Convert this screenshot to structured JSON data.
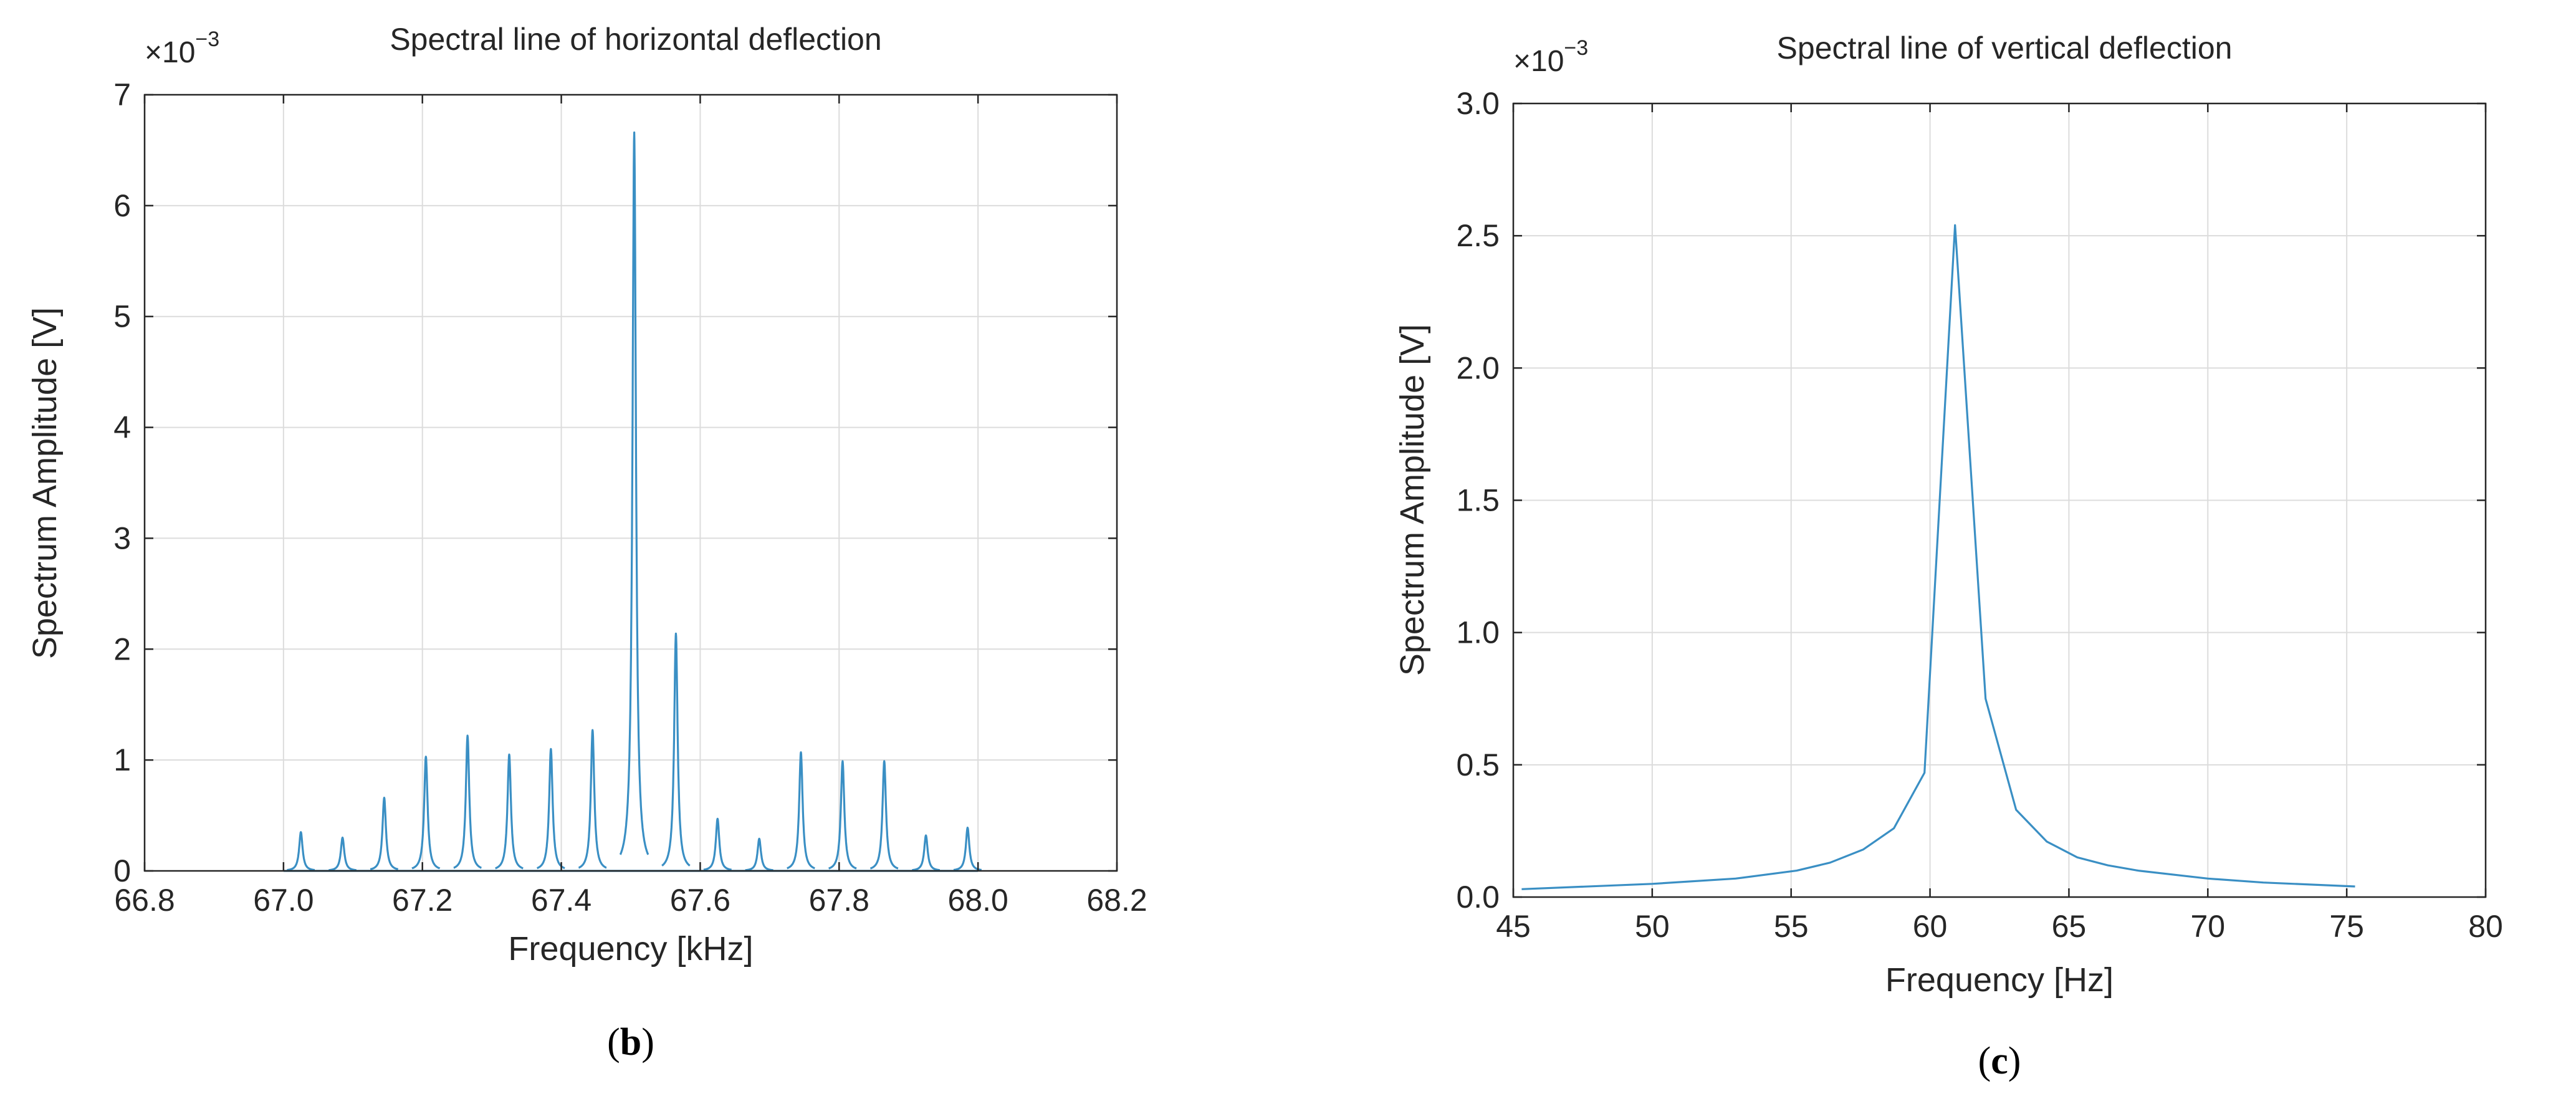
{
  "chart_data": [
    {
      "type": "line",
      "panel_label": "b",
      "title": "Spectral line of horizontal deflection",
      "xlabel": "Frequency [kHz]",
      "ylabel": "Spectrum Amplitude [V]",
      "y_scale_label": "×10",
      "y_scale_exponent": "−3",
      "xlim": [
        66.8,
        68.2
      ],
      "ylim": [
        0,
        7
      ],
      "xticks": [
        "66.8",
        "67.0",
        "67.2",
        "67.4",
        "67.6",
        "67.8",
        "68.0",
        "68.2"
      ],
      "yticks": [
        "0",
        "1",
        "2",
        "3",
        "4",
        "5",
        "6",
        "7"
      ],
      "grid": true,
      "peak_width_khz": 0.003,
      "peaks": [
        {
          "x": 67.025,
          "y": 0.35
        },
        {
          "x": 67.085,
          "y": 0.3
        },
        {
          "x": 67.145,
          "y": 0.66
        },
        {
          "x": 67.205,
          "y": 1.03
        },
        {
          "x": 67.265,
          "y": 1.22
        },
        {
          "x": 67.325,
          "y": 1.05
        },
        {
          "x": 67.385,
          "y": 1.1
        },
        {
          "x": 67.445,
          "y": 1.27
        },
        {
          "x": 67.505,
          "y": 6.66
        },
        {
          "x": 67.565,
          "y": 2.14
        },
        {
          "x": 67.625,
          "y": 0.47
        },
        {
          "x": 67.685,
          "y": 0.29
        },
        {
          "x": 67.745,
          "y": 1.07
        },
        {
          "x": 67.805,
          "y": 0.99
        },
        {
          "x": 67.865,
          "y": 0.99
        },
        {
          "x": 67.925,
          "y": 0.32
        },
        {
          "x": 67.985,
          "y": 0.39
        }
      ],
      "baseline_x_range": [
        67.0,
        68.0
      ]
    },
    {
      "type": "line",
      "panel_label": "c",
      "title": "Spectral line of vertical deflection",
      "xlabel": "Frequency [Hz]",
      "ylabel": "Spectrum Amplitude [V]",
      "y_scale_label": "×10",
      "y_scale_exponent": "−3",
      "xlim": [
        45,
        80
      ],
      "ylim": [
        0,
        3.0
      ],
      "xticks": [
        "45",
        "50",
        "55",
        "60",
        "65",
        "70",
        "75",
        "80"
      ],
      "yticks": [
        "0.0",
        "0.5",
        "1.0",
        "1.5",
        "2.0",
        "2.5",
        "3.0"
      ],
      "grid": true,
      "x": [
        45.3,
        50.0,
        53.0,
        55.2,
        56.4,
        57.6,
        58.7,
        59.8,
        60.9,
        62.0,
        63.1,
        64.2,
        65.3,
        66.4,
        67.5,
        70.0,
        72.0,
        75.3
      ],
      "y": [
        0.03,
        0.05,
        0.07,
        0.1,
        0.13,
        0.18,
        0.26,
        0.47,
        2.54,
        0.75,
        0.33,
        0.21,
        0.15,
        0.12,
        0.1,
        0.07,
        0.055,
        0.04
      ]
    }
  ]
}
